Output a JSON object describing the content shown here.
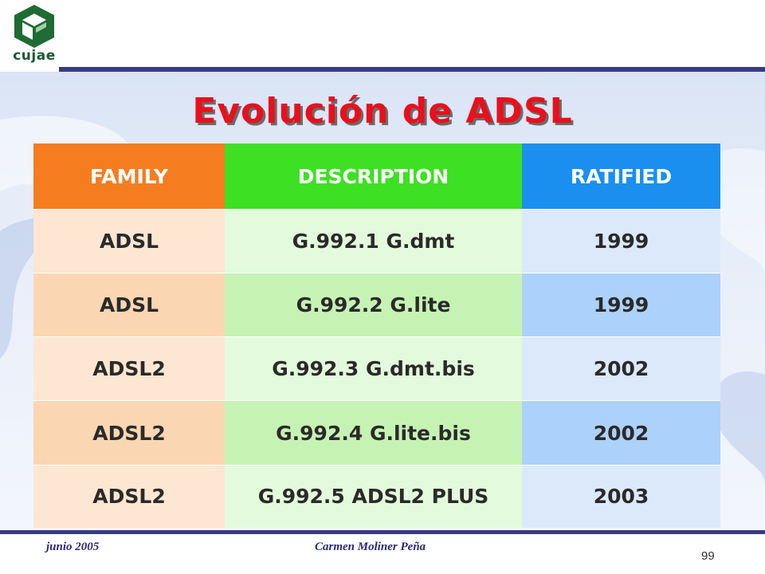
{
  "logo": {
    "text": "cujae"
  },
  "slide": {
    "title": "Evolución de ADSL"
  },
  "table": {
    "headers": [
      "FAMILY",
      "DESCRIPTION",
      "RATIFIED"
    ],
    "rows": [
      [
        "ADSL",
        "G.992.1 G.dmt",
        "1999"
      ],
      [
        "ADSL",
        "G.992.2 G.lite",
        "1999"
      ],
      [
        "ADSL2",
        "G.992.3 G.dmt.bis",
        "2002"
      ],
      [
        "ADSL2",
        "G.992.4 G.lite.bis",
        "2002"
      ],
      [
        "ADSL2",
        "G.992.5 ADSL2 PLUS",
        "2003"
      ]
    ]
  },
  "footer": {
    "date": "junio 2005",
    "author": "Carmen Moliner Peña",
    "page_number": "99"
  },
  "colors": {
    "title": "#e8101c",
    "bar": "#3a3a82",
    "family_header": "#f57d1f",
    "description_header": "#3ee024",
    "ratified_header": "#1a8ff0"
  }
}
